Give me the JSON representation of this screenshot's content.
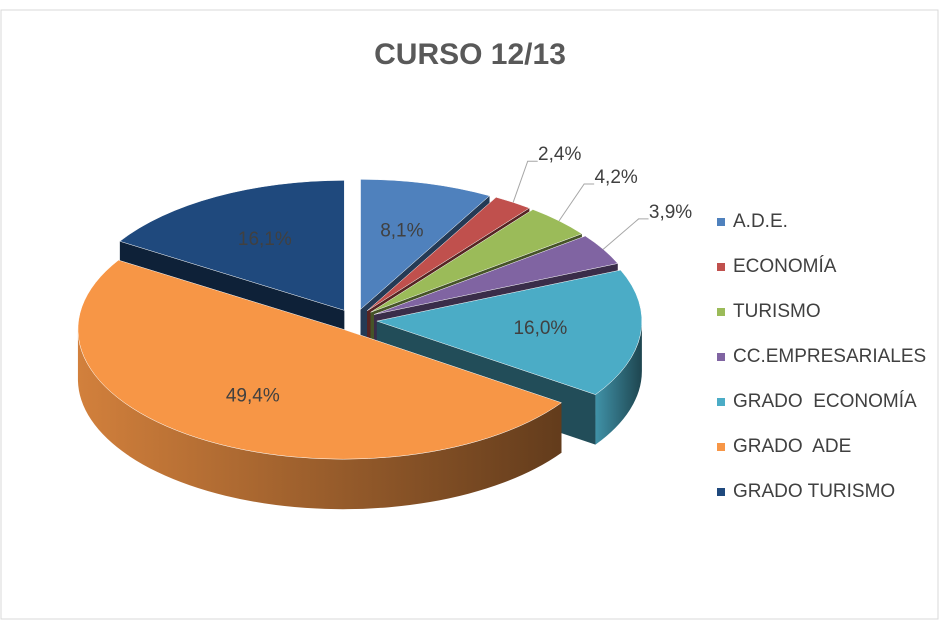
{
  "chart_data": {
    "type": "pie3d",
    "title": "CURSO 12/13",
    "categories": [
      "A.D.E.",
      "ECONOMÍA",
      "TURISMO",
      "CC.EMPRESARIALES",
      "GRADO  ECONOMÍA",
      "GRADO  ADE",
      "GRADO TURISMO"
    ],
    "values": [
      8.1,
      2.4,
      4.2,
      3.9,
      16.0,
      49.4,
      16.1
    ],
    "value_labels": [
      "8,1%",
      "2,4%",
      "4,2%",
      "3,9%",
      "16,0%",
      "49,4%",
      "16,1%"
    ],
    "colors": [
      "#4f81bd",
      "#c0504d",
      "#9bbb59",
      "#8064a2",
      "#4bacc6",
      "#f79646",
      "#1f497d"
    ],
    "legend": "right"
  }
}
